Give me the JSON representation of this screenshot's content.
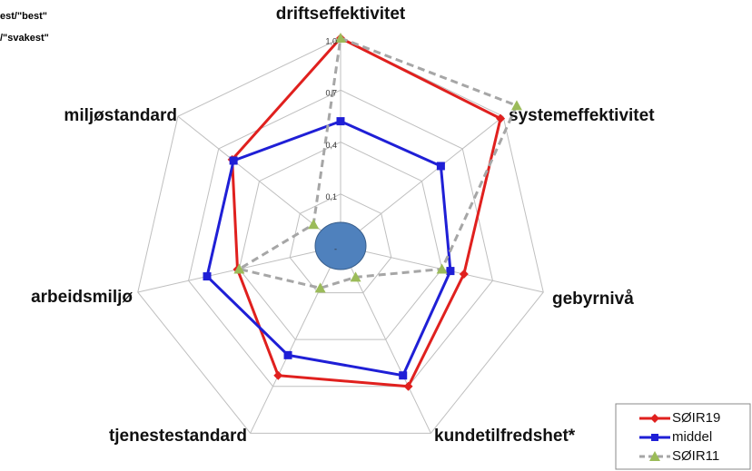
{
  "chart_data": {
    "type": "radar",
    "annotations": [
      "est/\"best\"",
      "/\"svakest\""
    ],
    "categories": [
      "driftseffektivitet",
      "systemeffektivitet",
      "gebyrnivå",
      "kundetilfredshet*",
      "tjenestestandard",
      "arbeidsmiljø",
      "miljøstandard"
    ],
    "series": [
      {
        "name": "SØIR19",
        "color": "#e0201e",
        "values": [
          1.0,
          0.98,
          0.53,
          0.7,
          0.63,
          0.41,
          0.6
        ]
      },
      {
        "name": "middel",
        "color": "#1f1fd6",
        "values": [
          0.52,
          0.54,
          0.45,
          0.63,
          0.5,
          0.59,
          0.59
        ]
      },
      {
        "name": "SØIR11",
        "color": "#9bbb59",
        "values": [
          1.0,
          1.1,
          0.4,
          0.0,
          0.07,
          0.4,
          0.0
        ]
      }
    ],
    "rlim": [
      -0.2,
      1.0
    ],
    "rticks": [
      {
        "value": -0.2,
        "label": "-"
      },
      {
        "value": 0.1,
        "label": "0,1"
      },
      {
        "value": 0.4,
        "label": "0,4"
      },
      {
        "value": 0.7,
        "label": "0,7"
      },
      {
        "value": 1.0,
        "label": "1,0"
      }
    ],
    "grid": true,
    "legend": "lower right"
  }
}
